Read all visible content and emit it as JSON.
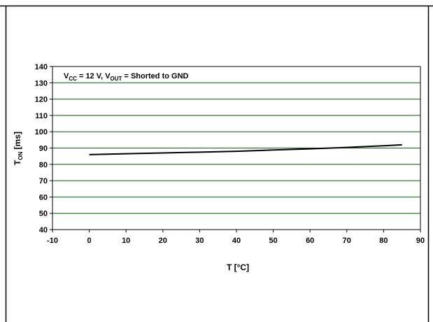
{
  "chart_data": {
    "type": "line",
    "annotation": {
      "vcc_prefix": "V",
      "vcc_sub": "CC",
      "vcc_value": " = 12 V, ",
      "vout_prefix": "V",
      "vout_sub": "OUT",
      "vout_value": " = Shorted to GND"
    },
    "xlabel": "T [°C]",
    "ylabel_prefix": "T",
    "ylabel_sub": "ON",
    "ylabel_suffix": " [ms]",
    "xlim": [
      -10,
      90
    ],
    "ylim": [
      40,
      140
    ],
    "xticks": [
      -10,
      0,
      10,
      20,
      30,
      40,
      50,
      60,
      70,
      80,
      90
    ],
    "yticks": [
      40,
      50,
      60,
      70,
      80,
      90,
      100,
      110,
      120,
      130,
      140
    ],
    "grid": "horizontal",
    "colors": {
      "grid": "#006400",
      "line": "#000000",
      "frame": "#000000"
    },
    "series": [
      {
        "x": [
          0,
          10,
          20,
          30,
          40,
          50,
          60,
          70,
          80,
          85
        ],
        "y": [
          86,
          86.5,
          87,
          87.5,
          88,
          88.8,
          89.5,
          90.4,
          91.4,
          92
        ]
      }
    ]
  }
}
